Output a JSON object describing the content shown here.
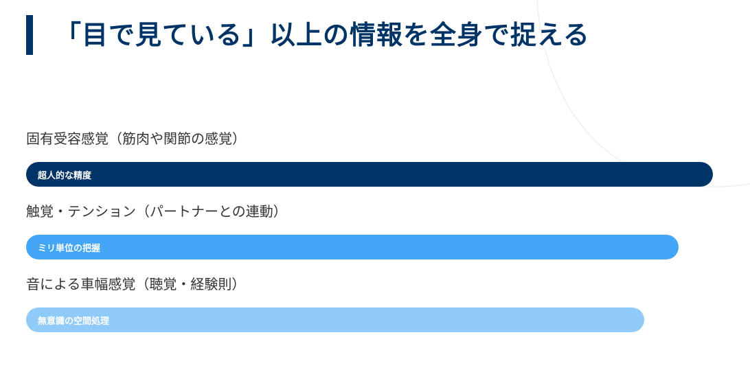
{
  "page": {
    "title": "「目で見ている」以上の情報を全身で捉える"
  },
  "chart_data": {
    "type": "bar",
    "orientation": "horizontal",
    "categories": [
      "固有受容感覚（筋肉や関節の感覚）",
      "触覚・テンション（パートナーとの連動）",
      "音による車幅感覚（聴覚・経験則）"
    ],
    "values": [
      100,
      95,
      90
    ],
    "bar_labels": [
      "超人的な精度",
      "ミリ単位の把握",
      "無意識の空間処理"
    ],
    "colors": [
      "#003466",
      "#42A5F5",
      "#90CAF9"
    ],
    "xlim": [
      0,
      100
    ]
  }
}
